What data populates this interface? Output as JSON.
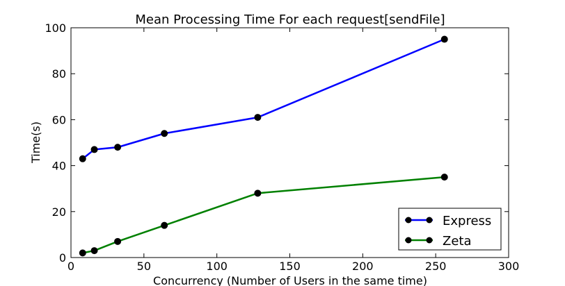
{
  "chart_data": {
    "type": "line",
    "title": "Mean Processing Time For each request[sendFile]",
    "xlabel": "Concurrency (Number of Users in the same time)",
    "ylabel": "Time(s)",
    "xlim": [
      0,
      300
    ],
    "ylim": [
      0,
      100
    ],
    "xticks": [
      0,
      50,
      100,
      150,
      200,
      250,
      300
    ],
    "yticks": [
      0,
      20,
      40,
      60,
      80,
      100
    ],
    "grid": false,
    "legend_position": "bottom-right",
    "x": [
      8,
      16,
      32,
      64,
      128,
      256
    ],
    "series": [
      {
        "name": "Express",
        "color": "#0000ff",
        "values": [
          43,
          47,
          48,
          54,
          61,
          95
        ]
      },
      {
        "name": "Zeta",
        "color": "#008000",
        "values": [
          2,
          3,
          7,
          14,
          28,
          35
        ]
      }
    ],
    "marker_color": "#000000"
  }
}
